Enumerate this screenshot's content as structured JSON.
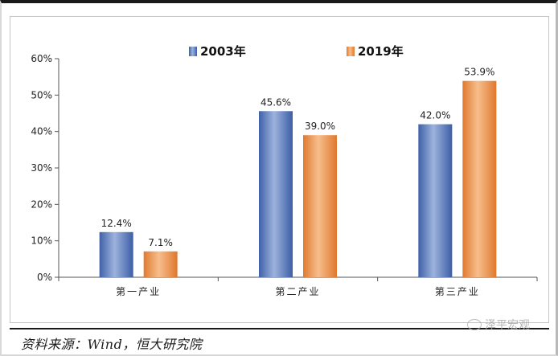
{
  "chart_data": {
    "type": "bar",
    "categories": [
      "第一产业",
      "第二产业",
      "第三产业"
    ],
    "series": [
      {
        "name": "2003年",
        "values": [
          12.4,
          45.6,
          42.0
        ],
        "labels": [
          "12.4%",
          "45.6%",
          "42.0%"
        ],
        "color": "#4f73b8"
      },
      {
        "name": "2019年",
        "values": [
          7.1,
          39.0,
          53.9
        ],
        "labels": [
          "7.1%",
          "39.0%",
          "53.9%"
        ],
        "color": "#e8873f"
      }
    ],
    "ylim": [
      0,
      60
    ],
    "y_ticks": [
      "0%",
      "10%",
      "20%",
      "30%",
      "40%",
      "50%",
      "60%"
    ],
    "legend_position": "top",
    "grid": false
  },
  "source": "资料来源：Wind，恒大研究院",
  "watermark": "泽平宏观"
}
